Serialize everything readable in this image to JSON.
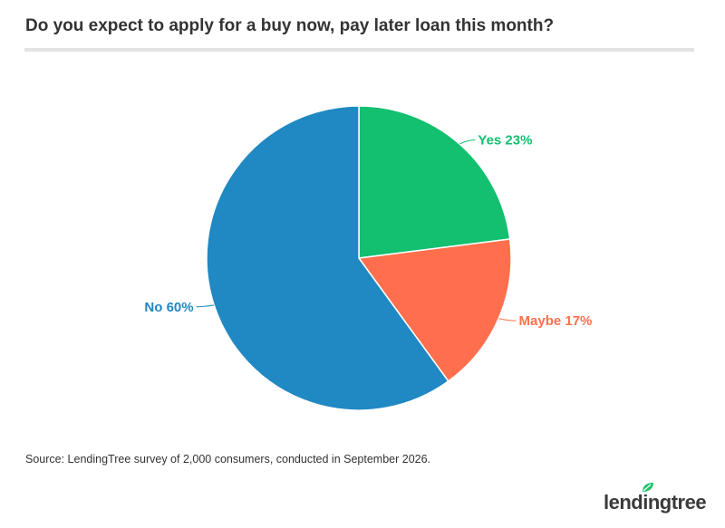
{
  "title": "Do you expect to apply for a buy now, pay later loan this month?",
  "source": "Source: LendingTree survey of 2,000 consumers, conducted in September 2026.",
  "logo": {
    "text": "lendingtree",
    "icon": "leaf-icon",
    "color": "#1fc46b"
  },
  "chart_data": {
    "type": "pie",
    "title": "Do you expect to apply for a buy now, pay later loan this month?",
    "slices": [
      {
        "label": "Yes",
        "value": 23,
        "display": "Yes 23%",
        "color": "#12c06f"
      },
      {
        "label": "Maybe",
        "value": 17,
        "display": "Maybe 17%",
        "color": "#ff6f4d"
      },
      {
        "label": "No",
        "value": 60,
        "display": "No 60%",
        "color": "#2088c2"
      }
    ],
    "start": "12 o'clock",
    "direction": "clockwise"
  }
}
